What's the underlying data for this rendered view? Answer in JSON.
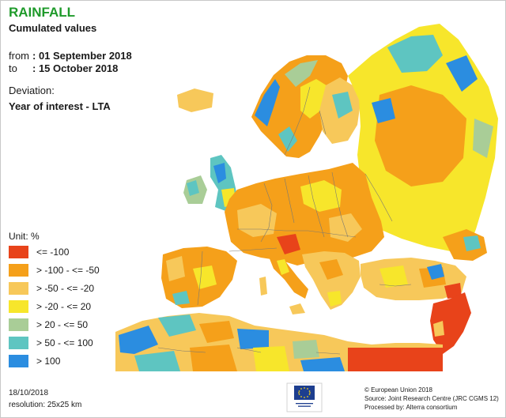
{
  "header": {
    "title": "RAINFALL",
    "subtitle": "Cumulated values",
    "from_label": "from",
    "from_value": ": 01 September 2018",
    "to_label": "to",
    "to_value": ": 15 October 2018",
    "deviation_label": "Deviation:",
    "deviation_value": "Year of interest - LTA"
  },
  "legend": {
    "unit": "Unit:  %",
    "items": [
      {
        "label": "<= -100",
        "color": "#e8431a"
      },
      {
        "label": "> -100 - <= -50",
        "color": "#f5a01a"
      },
      {
        "label": "> -50 - <= -20",
        "color": "#f7c85a"
      },
      {
        "label": "> -20 - <= 20",
        "color": "#f7e62b"
      },
      {
        "label": "> 20 - <= 50",
        "color": "#a9cd97"
      },
      {
        "label": "> 50 - <= 100",
        "color": "#5ec5c1"
      },
      {
        "label": "> 100",
        "color": "#2b8de0"
      }
    ]
  },
  "footer": {
    "date": "18/10/2018",
    "resolution": "resolution:  25x25 km",
    "eu_logo_text": "European Commission",
    "credits": [
      "© European Union 2018",
      "Source: Joint Research Centre (JRC CGMS 12)",
      "Processed by: Alterra consortium"
    ]
  },
  "map": {
    "sea_color": "#ffffff",
    "border_color": "#7d7a70"
  }
}
